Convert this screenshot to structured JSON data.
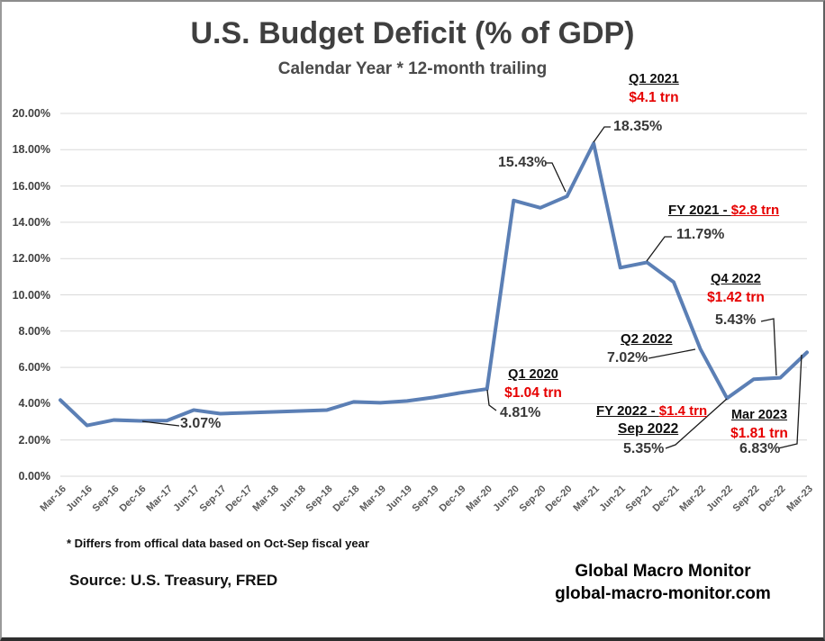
{
  "title": "U.S. Budget Deficit (% of GDP)",
  "subtitle": "Calendar Year * 12-month trailing",
  "chart_data": {
    "type": "line",
    "title": "U.S. Budget Deficit (% of GDP)",
    "subtitle": "Calendar Year * 12-month trailing",
    "x": [
      "Mar-16",
      "Jun-16",
      "Sep-16",
      "Dec-16",
      "Mar-17",
      "Jun-17",
      "Sep-17",
      "Dec-17",
      "Mar-18",
      "Jun-18",
      "Sep-18",
      "Dec-18",
      "Mar-19",
      "Jun-19",
      "Sep-19",
      "Dec-19",
      "Mar-20",
      "Jun-20",
      "Sep-20",
      "Dec-20",
      "Mar-21",
      "Jun-21",
      "Sep-21",
      "Dec-21",
      "Mar-22",
      "Jun-22",
      "Sep-22",
      "Dec-22",
      "Mar-23"
    ],
    "series": [
      {
        "name": "U.S. budget deficit, % of GDP, 12-month trailing",
        "values": [
          4.2,
          2.8,
          3.1,
          3.05,
          3.07,
          3.65,
          3.45,
          3.5,
          3.55,
          3.6,
          3.65,
          4.1,
          4.05,
          4.15,
          4.35,
          4.6,
          4.81,
          15.2,
          14.8,
          15.43,
          18.35,
          11.5,
          11.79,
          10.7,
          7.02,
          4.3,
          5.35,
          5.43,
          6.83
        ]
      }
    ],
    "ylim": [
      0,
      20
    ],
    "ytick_step": 2,
    "y_ticks": [
      "20.00%",
      "18.00%",
      "16.00%",
      "14.00%",
      "12.00%",
      "10.00%",
      "8.00%",
      "6.00%",
      "4.00%",
      "2.00%",
      "0.00%"
    ],
    "grid": true,
    "legend": "none",
    "line_color": "#5b7fb5",
    "grid_color": "#d9d9d9"
  },
  "annotations": {
    "q1_2021": {
      "label": "Q1 2021",
      "amount": "$4.1 trn"
    },
    "peak": {
      "value": "18.35%"
    },
    "dec20": {
      "value": "15.43%"
    },
    "fy2021": {
      "label": "FY 2021 - ",
      "amount": "$2.8 trn"
    },
    "sep21": {
      "value": "11.79%"
    },
    "q4_2022": {
      "label": "Q4 2022",
      "amount": "$1.42 trn"
    },
    "dec22": {
      "value": "5.43%"
    },
    "q2_2022": {
      "label": "Q2 2022",
      "value": "7.02%"
    },
    "q1_2020": {
      "label": "Q1 2020",
      "amount": "$1.04 trn"
    },
    "mar20": {
      "value": "4.81%"
    },
    "fy2022": {
      "label": "FY 2022 - ",
      "amount": "$1.4 trn"
    },
    "sep_2022": {
      "label": "Sep 2022"
    },
    "sep22": {
      "value": "5.35%"
    },
    "mar_2023": {
      "label": "Mar 2023",
      "amount": "$1.81 trn"
    },
    "mar23": {
      "value": "6.83%"
    },
    "early": {
      "value": "3.07%"
    }
  },
  "footnotes": {
    "fiscal_note": "* Differs from offical data based on Oct-Sep fiscal year",
    "source": "Source:  U.S. Treasury,  FRED"
  },
  "branding": {
    "name": "Global Macro Monitor",
    "url": "global-macro-monitor.com"
  },
  "colors": {
    "line_blue": "#5b7fb5",
    "accent_red": "#e60000",
    "grid_gray": "#d9d9d9",
    "title_gray": "#3f3f3f",
    "axis_gray": "#595959"
  }
}
